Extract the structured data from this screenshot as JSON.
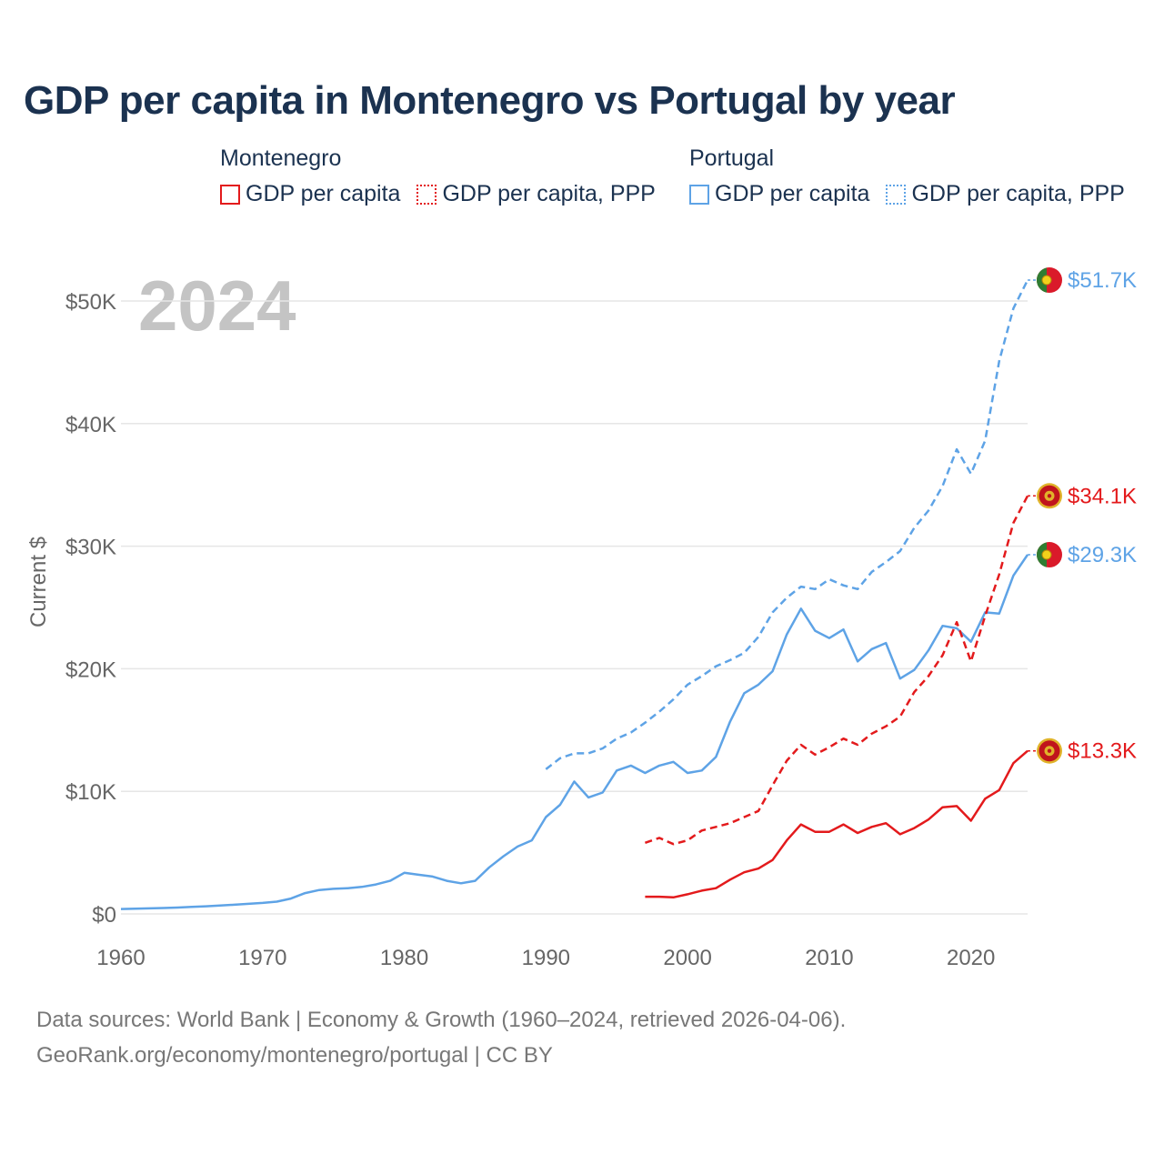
{
  "title": "GDP per capita in Montenegro vs Portugal by year",
  "legend": {
    "groups": [
      {
        "name": "Montenegro",
        "color": "#e31a1c",
        "items": [
          {
            "label": "GDP per capita",
            "style": "solid"
          },
          {
            "label": "GDP per capita, PPP",
            "style": "dotted"
          }
        ]
      },
      {
        "name": "Portugal",
        "color": "#5ea3e6",
        "items": [
          {
            "label": "GDP per capita",
            "style": "solid"
          },
          {
            "label": "GDP per capita, PPP",
            "style": "dotted"
          }
        ]
      }
    ]
  },
  "footer": {
    "line1": "Data sources: World Bank | Economy & Growth (1960–2024, retrieved 2026-04-06).",
    "line2": "GeoRank.org/economy/montenegro/portugal | CC BY"
  },
  "chart_data": {
    "type": "line",
    "title": "GDP per capita in Montenegro vs Portugal by year",
    "year_watermark": "2024",
    "xlabel": "",
    "ylabel": "Current $",
    "xlim": [
      1960,
      2024
    ],
    "ylim": [
      0,
      52000
    ],
    "x_ticks": [
      1960,
      1970,
      1980,
      1990,
      2000,
      2010,
      2020
    ],
    "y_ticks": [
      0,
      10000,
      20000,
      30000,
      40000,
      50000
    ],
    "y_tick_labels": [
      "$0",
      "$10K",
      "$20K",
      "$30K",
      "$40K",
      "$50K"
    ],
    "grid": true,
    "series": [
      {
        "name": "Portugal GDP per capita",
        "country": "Portugal",
        "color": "#5ea3e6",
        "dash": "solid",
        "end_label": "$29.3K",
        "points": [
          [
            1960,
            400
          ],
          [
            1961,
            420
          ],
          [
            1962,
            450
          ],
          [
            1963,
            480
          ],
          [
            1964,
            520
          ],
          [
            1965,
            570
          ],
          [
            1966,
            620
          ],
          [
            1967,
            680
          ],
          [
            1968,
            750
          ],
          [
            1969,
            820
          ],
          [
            1970,
            900
          ],
          [
            1971,
            1000
          ],
          [
            1972,
            1250
          ],
          [
            1973,
            1700
          ],
          [
            1974,
            1950
          ],
          [
            1975,
            2050
          ],
          [
            1976,
            2100
          ],
          [
            1977,
            2200
          ],
          [
            1978,
            2400
          ],
          [
            1979,
            2700
          ],
          [
            1980,
            3350
          ],
          [
            1981,
            3200
          ],
          [
            1982,
            3050
          ],
          [
            1983,
            2700
          ],
          [
            1984,
            2500
          ],
          [
            1985,
            2700
          ],
          [
            1986,
            3800
          ],
          [
            1987,
            4700
          ],
          [
            1988,
            5500
          ],
          [
            1989,
            6000
          ],
          [
            1990,
            7900
          ],
          [
            1991,
            8900
          ],
          [
            1992,
            10800
          ],
          [
            1993,
            9500
          ],
          [
            1994,
            9900
          ],
          [
            1995,
            11700
          ],
          [
            1996,
            12100
          ],
          [
            1997,
            11500
          ],
          [
            1998,
            12100
          ],
          [
            1999,
            12400
          ],
          [
            2000,
            11500
          ],
          [
            2001,
            11700
          ],
          [
            2002,
            12800
          ],
          [
            2003,
            15700
          ],
          [
            2004,
            18000
          ],
          [
            2005,
            18700
          ],
          [
            2006,
            19800
          ],
          [
            2007,
            22800
          ],
          [
            2008,
            24900
          ],
          [
            2009,
            23100
          ],
          [
            2010,
            22500
          ],
          [
            2011,
            23200
          ],
          [
            2012,
            20600
          ],
          [
            2013,
            21600
          ],
          [
            2014,
            22100
          ],
          [
            2015,
            19200
          ],
          [
            2016,
            19900
          ],
          [
            2017,
            21500
          ],
          [
            2018,
            23500
          ],
          [
            2019,
            23300
          ],
          [
            2020,
            22200
          ],
          [
            2021,
            24600
          ],
          [
            2022,
            24500
          ],
          [
            2023,
            27600
          ],
          [
            2024,
            29300
          ]
        ]
      },
      {
        "name": "Portugal GDP per capita, PPP",
        "country": "Portugal",
        "color": "#5ea3e6",
        "dash": "dashed",
        "end_label": "$51.7K",
        "points": [
          [
            1990,
            11800
          ],
          [
            1991,
            12700
          ],
          [
            1992,
            13100
          ],
          [
            1993,
            13100
          ],
          [
            1994,
            13500
          ],
          [
            1995,
            14300
          ],
          [
            1996,
            14800
          ],
          [
            1997,
            15600
          ],
          [
            1998,
            16500
          ],
          [
            1999,
            17500
          ],
          [
            2000,
            18700
          ],
          [
            2001,
            19400
          ],
          [
            2002,
            20200
          ],
          [
            2003,
            20700
          ],
          [
            2004,
            21300
          ],
          [
            2005,
            22600
          ],
          [
            2006,
            24600
          ],
          [
            2007,
            25800
          ],
          [
            2008,
            26700
          ],
          [
            2009,
            26500
          ],
          [
            2010,
            27300
          ],
          [
            2011,
            26800
          ],
          [
            2012,
            26500
          ],
          [
            2013,
            27900
          ],
          [
            2014,
            28700
          ],
          [
            2015,
            29600
          ],
          [
            2016,
            31500
          ],
          [
            2017,
            32900
          ],
          [
            2018,
            34900
          ],
          [
            2019,
            37900
          ],
          [
            2020,
            35900
          ],
          [
            2021,
            38600
          ],
          [
            2022,
            45100
          ],
          [
            2023,
            49400
          ],
          [
            2024,
            51700
          ]
        ]
      },
      {
        "name": "Montenegro GDP per capita",
        "country": "Montenegro",
        "color": "#e31a1c",
        "dash": "solid",
        "end_label": "$13.3K",
        "points": [
          [
            1997,
            1400
          ],
          [
            1998,
            1400
          ],
          [
            1999,
            1350
          ],
          [
            2000,
            1600
          ],
          [
            2001,
            1900
          ],
          [
            2002,
            2100
          ],
          [
            2003,
            2800
          ],
          [
            2004,
            3400
          ],
          [
            2005,
            3700
          ],
          [
            2006,
            4400
          ],
          [
            2007,
            6000
          ],
          [
            2008,
            7300
          ],
          [
            2009,
            6700
          ],
          [
            2010,
            6700
          ],
          [
            2011,
            7300
          ],
          [
            2012,
            6600
          ],
          [
            2013,
            7100
          ],
          [
            2014,
            7400
          ],
          [
            2015,
            6500
          ],
          [
            2016,
            7000
          ],
          [
            2017,
            7700
          ],
          [
            2018,
            8700
          ],
          [
            2019,
            8800
          ],
          [
            2020,
            7600
          ],
          [
            2021,
            9400
          ],
          [
            2022,
            10100
          ],
          [
            2023,
            12300
          ],
          [
            2024,
            13300
          ]
        ]
      },
      {
        "name": "Montenegro GDP per capita, PPP",
        "country": "Montenegro",
        "color": "#e31a1c",
        "dash": "dashed",
        "end_label": "$34.1K",
        "points": [
          [
            1997,
            5800
          ],
          [
            1998,
            6200
          ],
          [
            1999,
            5700
          ],
          [
            2000,
            6000
          ],
          [
            2001,
            6800
          ],
          [
            2002,
            7100
          ],
          [
            2003,
            7400
          ],
          [
            2004,
            7900
          ],
          [
            2005,
            8400
          ],
          [
            2006,
            10500
          ],
          [
            2007,
            12500
          ],
          [
            2008,
            13800
          ],
          [
            2009,
            13000
          ],
          [
            2010,
            13600
          ],
          [
            2011,
            14300
          ],
          [
            2012,
            13800
          ],
          [
            2013,
            14700
          ],
          [
            2014,
            15300
          ],
          [
            2015,
            16100
          ],
          [
            2016,
            18100
          ],
          [
            2017,
            19400
          ],
          [
            2018,
            21100
          ],
          [
            2019,
            23800
          ],
          [
            2020,
            20600
          ],
          [
            2021,
            24300
          ],
          [
            2022,
            27700
          ],
          [
            2023,
            31900
          ],
          [
            2024,
            34100
          ]
        ]
      }
    ]
  }
}
